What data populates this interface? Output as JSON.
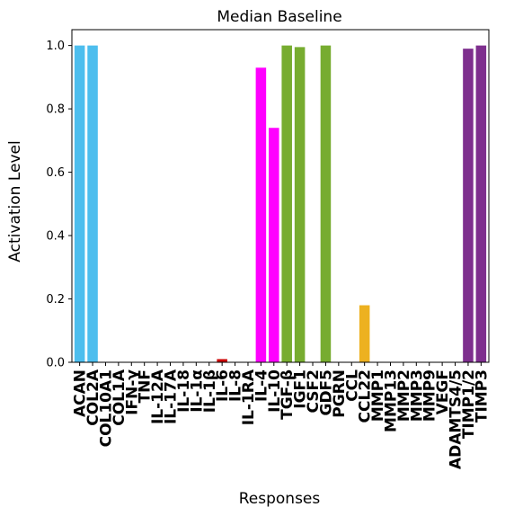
{
  "chart_data": {
    "type": "bar",
    "title": "Median Baseline",
    "xlabel": "Responses",
    "ylabel": "Activation Level",
    "ylim": [
      0,
      1.05
    ],
    "yticks": [
      0.0,
      0.2,
      0.4,
      0.6,
      0.8,
      1.0
    ],
    "ytick_labels": [
      "0.0",
      "0.2",
      "0.4",
      "0.6",
      "0.8",
      "1.0"
    ],
    "grid": false,
    "categories": [
      "ACAN",
      "COL2A",
      "COL10A1",
      "COL1A",
      "IFN-γ",
      "TNF",
      "IL-12A",
      "IL-17A",
      "IL-18",
      "IL-1α",
      "IL-1β",
      "IL-6",
      "IL-8",
      "IL-1RA",
      "IL-4",
      "IL-10",
      "TGF-β",
      "IGF1",
      "CSF2",
      "GDF5",
      "PGRN",
      "CCL",
      "CCL22",
      "MMP1",
      "MMP13",
      "MMP2",
      "MMP3",
      "MMP9",
      "VEGF",
      "ADAMTS4/5",
      "TIMP1/2",
      "TIMP3"
    ],
    "values": [
      1.0,
      1.0,
      0,
      0,
      0,
      0,
      0,
      0,
      0,
      0,
      0,
      0.01,
      0,
      0,
      0.93,
      0.74,
      1.0,
      0.995,
      0,
      1.0,
      0,
      0,
      0.18,
      0,
      0,
      0,
      0,
      0,
      0,
      0,
      0.99,
      1.0
    ],
    "colors": [
      "#4dbeee",
      "#4dbeee",
      "#4dbeee",
      "#4dbeee",
      "#cc0000",
      "#cc0000",
      "#cc0000",
      "#cc0000",
      "#cc0000",
      "#cc0000",
      "#cc0000",
      "#cc0000",
      "#cc0000",
      "#ff00ff",
      "#ff00ff",
      "#ff00ff",
      "#77ac30",
      "#77ac30",
      "#77ac30",
      "#77ac30",
      "#77ac30",
      "#edb120",
      "#edb120",
      "#7e2f8e",
      "#7e2f8e",
      "#7e2f8e",
      "#7e2f8e",
      "#7e2f8e",
      "#7e2f8e",
      "#7e2f8e",
      "#7e2f8e",
      "#7e2f8e"
    ]
  }
}
